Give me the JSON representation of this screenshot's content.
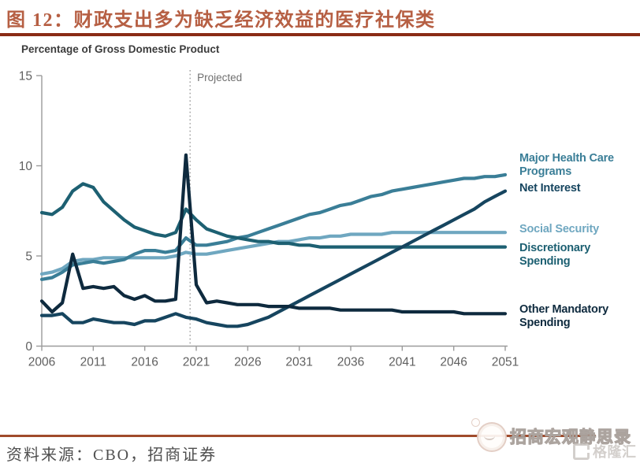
{
  "header": {
    "title": "图 12：财政支出多为缺乏经济效益的医疗社保类"
  },
  "footer": {
    "source": "资料来源：CBO，招商证券",
    "watermark": "招商宏观静思录",
    "watermark2": "格隆汇"
  },
  "chart_data": {
    "type": "line",
    "title": "图 12：财政支出多为缺乏经济效益的医疗社保类",
    "xlabel": "",
    "ylabel": "Percentage of Gross Domestic Product",
    "projected_label": "Projected",
    "projected_boundary_year": 2020.4,
    "xlim": [
      2006,
      2051
    ],
    "ylim": [
      0,
      15
    ],
    "x_ticks": [
      2006,
      2011,
      2016,
      2021,
      2026,
      2031,
      2036,
      2041,
      2046,
      2051
    ],
    "y_ticks": [
      0,
      5,
      10,
      15
    ],
    "grid": false,
    "legend_position": "right",
    "x": [
      2006,
      2007,
      2008,
      2009,
      2010,
      2011,
      2012,
      2013,
      2014,
      2015,
      2016,
      2017,
      2018,
      2019,
      2020,
      2021,
      2022,
      2023,
      2024,
      2025,
      2026,
      2027,
      2028,
      2029,
      2030,
      2031,
      2032,
      2033,
      2034,
      2035,
      2036,
      2037,
      2038,
      2039,
      2040,
      2041,
      2042,
      2043,
      2044,
      2045,
      2046,
      2047,
      2048,
      2049,
      2050,
      2051
    ],
    "series": [
      {
        "name": "Major Health Care Programs",
        "color": "#3A7E97",
        "values": [
          3.7,
          3.8,
          4.1,
          4.5,
          4.6,
          4.7,
          4.6,
          4.7,
          4.8,
          5.1,
          5.3,
          5.3,
          5.2,
          5.3,
          6.0,
          5.6,
          5.6,
          5.7,
          5.8,
          6.0,
          6.1,
          6.3,
          6.5,
          6.7,
          6.9,
          7.1,
          7.3,
          7.4,
          7.6,
          7.8,
          7.9,
          8.1,
          8.3,
          8.4,
          8.6,
          8.7,
          8.8,
          8.9,
          9.0,
          9.1,
          9.2,
          9.3,
          9.3,
          9.4,
          9.4,
          9.5
        ]
      },
      {
        "name": "Net Interest",
        "color": "#16455F",
        "values": [
          1.7,
          1.7,
          1.8,
          1.3,
          1.3,
          1.5,
          1.4,
          1.3,
          1.3,
          1.2,
          1.4,
          1.4,
          1.6,
          1.8,
          1.6,
          1.5,
          1.3,
          1.2,
          1.1,
          1.1,
          1.2,
          1.4,
          1.6,
          1.9,
          2.2,
          2.5,
          2.8,
          3.1,
          3.4,
          3.7,
          4.0,
          4.3,
          4.6,
          4.9,
          5.2,
          5.5,
          5.8,
          6.1,
          6.4,
          6.7,
          7.0,
          7.3,
          7.6,
          8.0,
          8.3,
          8.6
        ]
      },
      {
        "name": "Social Security",
        "color": "#6FA7C0",
        "values": [
          4.0,
          4.1,
          4.3,
          4.7,
          4.8,
          4.8,
          4.9,
          4.9,
          4.9,
          4.9,
          4.9,
          4.9,
          4.9,
          5.0,
          5.2,
          5.1,
          5.1,
          5.2,
          5.3,
          5.4,
          5.5,
          5.6,
          5.7,
          5.8,
          5.8,
          5.9,
          6.0,
          6.0,
          6.1,
          6.1,
          6.2,
          6.2,
          6.2,
          6.2,
          6.3,
          6.3,
          6.3,
          6.3,
          6.3,
          6.3,
          6.3,
          6.3,
          6.3,
          6.3,
          6.3,
          6.3
        ]
      },
      {
        "name": "Discretionary Spending",
        "color": "#1D6072",
        "values": [
          7.4,
          7.3,
          7.7,
          8.6,
          9.0,
          8.8,
          8.0,
          7.5,
          7.0,
          6.6,
          6.4,
          6.2,
          6.1,
          6.3,
          7.6,
          7.0,
          6.5,
          6.3,
          6.1,
          6.0,
          5.9,
          5.8,
          5.8,
          5.7,
          5.7,
          5.6,
          5.6,
          5.5,
          5.5,
          5.5,
          5.5,
          5.5,
          5.5,
          5.5,
          5.5,
          5.5,
          5.5,
          5.5,
          5.5,
          5.5,
          5.5,
          5.5,
          5.5,
          5.5,
          5.5,
          5.5
        ]
      },
      {
        "name": "Other Mandatory Spending",
        "color": "#0E2A3E",
        "values": [
          2.5,
          1.9,
          2.4,
          5.1,
          3.2,
          3.3,
          3.2,
          3.3,
          2.8,
          2.6,
          2.8,
          2.5,
          2.5,
          2.6,
          10.6,
          3.4,
          2.4,
          2.5,
          2.4,
          2.3,
          2.3,
          2.3,
          2.2,
          2.2,
          2.2,
          2.1,
          2.1,
          2.1,
          2.1,
          2.0,
          2.0,
          2.0,
          2.0,
          2.0,
          2.0,
          1.9,
          1.9,
          1.9,
          1.9,
          1.9,
          1.9,
          1.8,
          1.8,
          1.8,
          1.8,
          1.8
        ]
      }
    ]
  }
}
